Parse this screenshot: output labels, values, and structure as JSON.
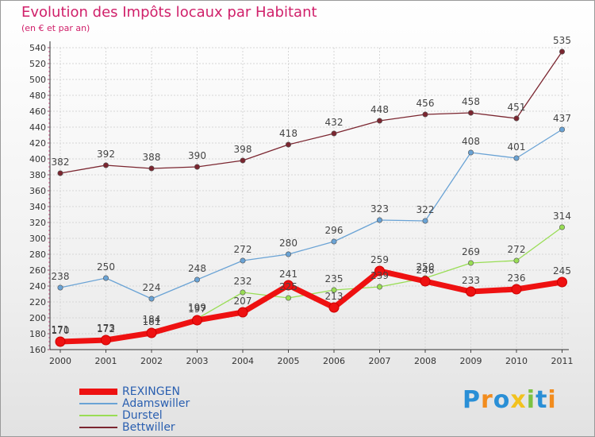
{
  "chart_data": {
    "type": "line",
    "title": "Evolution des Impôts locaux par Habitant",
    "subtitle": "(en € et par an)",
    "x": [
      "2000",
      "2001",
      "2002",
      "2003",
      "2004",
      "2005",
      "2006",
      "2007",
      "2008",
      "2009",
      "2010",
      "2011"
    ],
    "ylim": [
      160,
      540
    ],
    "yticks": [
      160,
      180,
      200,
      220,
      240,
      260,
      280,
      300,
      320,
      340,
      360,
      380,
      400,
      420,
      440,
      460,
      480,
      500,
      520,
      540
    ],
    "grid": true,
    "series": [
      {
        "name": "REXINGEN",
        "color": "#ee1111",
        "values": [
          170,
          172,
          181,
          197,
          207,
          241,
          213,
          259,
          246,
          233,
          236,
          245
        ]
      },
      {
        "name": "Adamswiller",
        "color": "#6aa3d5",
        "values": [
          238,
          250,
          224,
          248,
          272,
          280,
          296,
          323,
          322,
          408,
          401,
          437
        ]
      },
      {
        "name": "Durstel",
        "color": "#99dd55",
        "values": [
          171,
          173,
          184,
          199,
          232,
          225,
          235,
          239,
          250,
          269,
          272,
          314
        ]
      },
      {
        "name": "Bettwiller",
        "color": "#7b2630",
        "values": [
          382,
          392,
          388,
          390,
          398,
          418,
          432,
          448,
          456,
          458,
          451,
          535
        ]
      }
    ]
  },
  "legend": [
    "REXINGEN",
    "Adamswiller",
    "Durstel",
    "Bettwiller"
  ],
  "logo": {
    "text": "Proxiti",
    "letters": [
      "P",
      "r",
      "o",
      "x",
      "i",
      "t",
      "i"
    ],
    "colors": [
      "#2a8fd6",
      "#f28c1e",
      "#2a8fd6",
      "#f2c21e",
      "#7cc242",
      "#2a8fd6",
      "#f28c1e"
    ]
  }
}
